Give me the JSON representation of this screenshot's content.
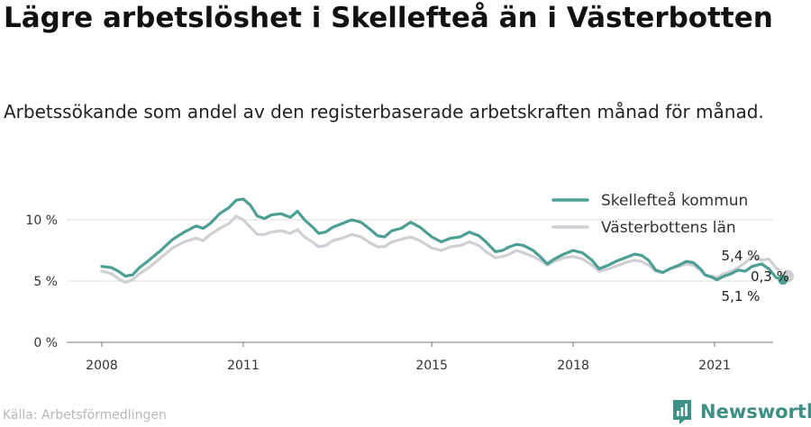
{
  "header": {
    "title": "Lägre arbetslöshet i Skellefteå än i Västerbotten",
    "subtitle": "Arbetssökande som andel av den registerbaserade arbetskraften månad för månad."
  },
  "footer": {
    "source": "Källa: Arbetsförmedlingen",
    "brand": "Newsworthy"
  },
  "colors": {
    "skelleftea": "#4d9e93",
    "vasterbotten": "#cfcfd6",
    "grid": "#dddddd",
    "brand": "#3e8f85"
  },
  "chart_data": {
    "type": "line",
    "x_ticks": [
      "2008",
      "2011",
      "2015",
      "2018",
      "2021"
    ],
    "y_ticks": [
      "0 %",
      "5 %",
      "10 %"
    ],
    "xlim": [
      2008.0,
      2022.6
    ],
    "ylim": [
      0,
      10
    ],
    "grid": true,
    "legend_position": "top-right",
    "series": [
      {
        "name": "Skellefteå kommun",
        "color": "#4d9e93",
        "points": [
          [
            2008.0,
            6.2
          ],
          [
            2008.2,
            6.1
          ],
          [
            2008.35,
            5.8
          ],
          [
            2008.5,
            5.4
          ],
          [
            2008.65,
            5.5
          ],
          [
            2008.8,
            6.1
          ],
          [
            2009.0,
            6.7
          ],
          [
            2009.25,
            7.5
          ],
          [
            2009.5,
            8.4
          ],
          [
            2009.75,
            9.0
          ],
          [
            2010.0,
            9.5
          ],
          [
            2010.15,
            9.3
          ],
          [
            2010.3,
            9.7
          ],
          [
            2010.5,
            10.5
          ],
          [
            2010.7,
            11.0
          ],
          [
            2010.85,
            11.6
          ],
          [
            2011.0,
            11.7
          ],
          [
            2011.15,
            11.2
          ],
          [
            2011.3,
            10.3
          ],
          [
            2011.45,
            10.1
          ],
          [
            2011.6,
            10.4
          ],
          [
            2011.8,
            10.5
          ],
          [
            2012.0,
            10.2
          ],
          [
            2012.15,
            10.7
          ],
          [
            2012.3,
            10.0
          ],
          [
            2012.5,
            9.3
          ],
          [
            2012.6,
            8.9
          ],
          [
            2012.75,
            9.0
          ],
          [
            2012.9,
            9.4
          ],
          [
            2013.1,
            9.7
          ],
          [
            2013.3,
            10.0
          ],
          [
            2013.5,
            9.8
          ],
          [
            2013.7,
            9.2
          ],
          [
            2013.85,
            8.7
          ],
          [
            2014.0,
            8.6
          ],
          [
            2014.15,
            9.1
          ],
          [
            2014.35,
            9.3
          ],
          [
            2014.55,
            9.8
          ],
          [
            2014.75,
            9.4
          ],
          [
            2015.0,
            8.6
          ],
          [
            2015.2,
            8.2
          ],
          [
            2015.4,
            8.5
          ],
          [
            2015.6,
            8.6
          ],
          [
            2015.8,
            9.0
          ],
          [
            2016.0,
            8.7
          ],
          [
            2016.15,
            8.2
          ],
          [
            2016.35,
            7.4
          ],
          [
            2016.5,
            7.5
          ],
          [
            2016.65,
            7.8
          ],
          [
            2016.8,
            8.0
          ],
          [
            2016.95,
            7.9
          ],
          [
            2017.15,
            7.5
          ],
          [
            2017.3,
            7.0
          ],
          [
            2017.45,
            6.4
          ],
          [
            2017.6,
            6.8
          ],
          [
            2017.8,
            7.2
          ],
          [
            2018.0,
            7.5
          ],
          [
            2018.2,
            7.3
          ],
          [
            2018.4,
            6.7
          ],
          [
            2018.55,
            6.0
          ],
          [
            2018.75,
            6.3
          ],
          [
            2018.9,
            6.6
          ],
          [
            2019.1,
            6.9
          ],
          [
            2019.3,
            7.2
          ],
          [
            2019.45,
            7.1
          ],
          [
            2019.6,
            6.7
          ],
          [
            2019.75,
            5.9
          ],
          [
            2019.9,
            5.7
          ],
          [
            2020.05,
            6.0
          ],
          [
            2020.25,
            6.3
          ],
          [
            2020.4,
            6.6
          ],
          [
            2020.55,
            6.5
          ],
          [
            2020.7,
            6.0
          ],
          [
            2020.8,
            5.5
          ],
          [
            2020.95,
            5.3
          ],
          [
            2021.05,
            5.1
          ],
          [
            2021.2,
            5.4
          ],
          [
            2021.35,
            5.6
          ],
          [
            2021.5,
            5.9
          ],
          [
            2021.65,
            5.8
          ],
          [
            2021.8,
            6.2
          ],
          [
            2022.0,
            6.4
          ],
          [
            2022.15,
            6.0
          ],
          [
            2022.3,
            5.3
          ],
          [
            2022.45,
            5.1
          ]
        ]
      },
      {
        "name": "Västerbottens län",
        "color": "#cfcfd6",
        "points": [
          [
            2008.0,
            5.8
          ],
          [
            2008.2,
            5.6
          ],
          [
            2008.35,
            5.2
          ],
          [
            2008.5,
            4.9
          ],
          [
            2008.65,
            5.1
          ],
          [
            2008.8,
            5.6
          ],
          [
            2009.0,
            6.1
          ],
          [
            2009.25,
            6.9
          ],
          [
            2009.5,
            7.7
          ],
          [
            2009.75,
            8.2
          ],
          [
            2010.0,
            8.5
          ],
          [
            2010.15,
            8.3
          ],
          [
            2010.3,
            8.8
          ],
          [
            2010.5,
            9.3
          ],
          [
            2010.7,
            9.7
          ],
          [
            2010.85,
            10.3
          ],
          [
            2011.0,
            10.0
          ],
          [
            2011.15,
            9.4
          ],
          [
            2011.3,
            8.8
          ],
          [
            2011.45,
            8.8
          ],
          [
            2011.6,
            9.0
          ],
          [
            2011.8,
            9.1
          ],
          [
            2012.0,
            8.9
          ],
          [
            2012.15,
            9.2
          ],
          [
            2012.3,
            8.6
          ],
          [
            2012.5,
            8.1
          ],
          [
            2012.6,
            7.8
          ],
          [
            2012.75,
            7.9
          ],
          [
            2012.9,
            8.3
          ],
          [
            2013.1,
            8.5
          ],
          [
            2013.3,
            8.8
          ],
          [
            2013.5,
            8.6
          ],
          [
            2013.7,
            8.1
          ],
          [
            2013.85,
            7.8
          ],
          [
            2014.0,
            7.8
          ],
          [
            2014.15,
            8.2
          ],
          [
            2014.35,
            8.4
          ],
          [
            2014.55,
            8.6
          ],
          [
            2014.75,
            8.3
          ],
          [
            2015.0,
            7.7
          ],
          [
            2015.2,
            7.5
          ],
          [
            2015.4,
            7.8
          ],
          [
            2015.6,
            7.9
          ],
          [
            2015.8,
            8.2
          ],
          [
            2016.0,
            7.9
          ],
          [
            2016.15,
            7.4
          ],
          [
            2016.35,
            6.9
          ],
          [
            2016.5,
            7.0
          ],
          [
            2016.65,
            7.2
          ],
          [
            2016.8,
            7.5
          ],
          [
            2016.95,
            7.3
          ],
          [
            2017.15,
            7.0
          ],
          [
            2017.3,
            6.7
          ],
          [
            2017.45,
            6.3
          ],
          [
            2017.6,
            6.6
          ],
          [
            2017.8,
            6.9
          ],
          [
            2018.0,
            7.0
          ],
          [
            2018.2,
            6.8
          ],
          [
            2018.4,
            6.3
          ],
          [
            2018.55,
            5.8
          ],
          [
            2018.75,
            6.0
          ],
          [
            2018.9,
            6.2
          ],
          [
            2019.1,
            6.5
          ],
          [
            2019.3,
            6.7
          ],
          [
            2019.45,
            6.6
          ],
          [
            2019.6,
            6.3
          ],
          [
            2019.75,
            5.8
          ],
          [
            2019.9,
            5.7
          ],
          [
            2020.05,
            6.0
          ],
          [
            2020.25,
            6.2
          ],
          [
            2020.4,
            6.4
          ],
          [
            2020.55,
            6.3
          ],
          [
            2020.7,
            5.9
          ],
          [
            2020.8,
            5.5
          ],
          [
            2020.95,
            5.4
          ],
          [
            2021.05,
            5.3
          ],
          [
            2021.2,
            5.6
          ],
          [
            2021.35,
            5.8
          ],
          [
            2021.5,
            6.1
          ],
          [
            2021.65,
            6.5
          ],
          [
            2021.8,
            7.0
          ],
          [
            2022.0,
            6.7
          ],
          [
            2022.15,
            6.8
          ],
          [
            2022.3,
            6.1
          ],
          [
            2022.45,
            5.6
          ],
          [
            2022.55,
            5.4
          ]
        ]
      }
    ],
    "end_labels": {
      "vasterbotten": "5,4 %",
      "difference": "0,3 %",
      "skelleftea": "5,1 %"
    }
  }
}
